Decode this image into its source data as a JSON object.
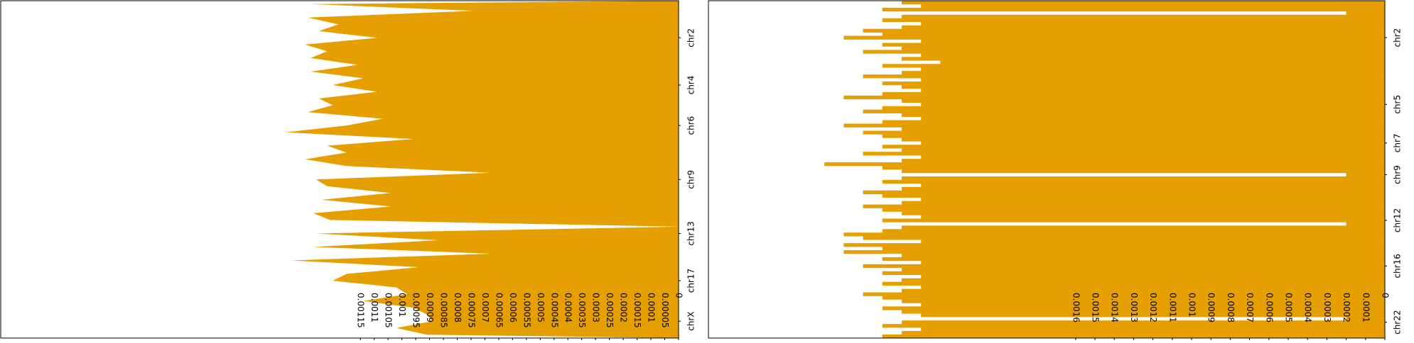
{
  "chart_data": [
    {
      "type": "area",
      "color": "#e69f00",
      "categories": [
        null,
        null,
        null,
        null,
        null,
        "chr2",
        null,
        null,
        null,
        null,
        null,
        null,
        "chr4",
        null,
        null,
        null,
        null,
        null,
        "chr6",
        null,
        null,
        null,
        null,
        null,
        null,
        null,
        "chr9",
        null,
        null,
        null,
        null,
        null,
        null,
        null,
        "chr13",
        null,
        null,
        null,
        null,
        null,
        null,
        "chr17",
        null,
        null,
        null,
        null,
        null,
        "chrX",
        null,
        null
      ],
      "values": [
        0.00133,
        0.00074,
        0.00134,
        0.00123,
        0.0013,
        0.00109,
        0.00135,
        0.00127,
        0.00133,
        0.00116,
        0.00133,
        0.00114,
        0.00125,
        0.00109,
        0.0013,
        0.00125,
        0.00134,
        0.00107,
        0.0012,
        0.00142,
        0.00096,
        0.00127,
        0.0012,
        0.00135,
        0.0012,
        0.00068,
        0.00131,
        0.00127,
        0.00104,
        0.00129,
        0.00104,
        0.00132,
        0.00126,
        0,
        0.00131,
        0.00087,
        0.00132,
        0.00068,
        0.0014,
        0.00094,
        0.0012,
        0.00125,
        0.00102,
        0.00098,
        0.00114,
        0.00096,
        0.00091,
        0.00089,
        0.00102,
        0.00091
      ],
      "xlim": [
        0,
        0.00245
      ],
      "xticks": [
        0.00115,
        0.0011,
        0.00105,
        0.001,
        0.00095,
        0.0009,
        0.00085,
        0.0008,
        0.00075,
        0.0007,
        0.00065,
        0.0006,
        0.00055,
        0.0005,
        0.00045,
        0.0004,
        0.00035,
        0.0003,
        0.00025,
        0.0002,
        0.00015,
        0.0001,
        5e-05,
        0
      ]
    },
    {
      "type": "bar",
      "color": "#e69f00",
      "categories": [
        null,
        null,
        null,
        null,
        null,
        null,
        null,
        null,
        null,
        null,
        "chr2",
        null,
        null,
        null,
        null,
        null,
        null,
        null,
        null,
        null,
        null,
        null,
        null,
        null,
        null,
        null,
        null,
        null,
        null,
        "chr5",
        null,
        null,
        null,
        null,
        null,
        null,
        null,
        null,
        null,
        null,
        "chr7",
        null,
        null,
        null,
        null,
        null,
        null,
        null,
        null,
        "chr9",
        null,
        null,
        null,
        null,
        null,
        null,
        null,
        null,
        null,
        null,
        null,
        null,
        "chr12",
        null,
        null,
        null,
        null,
        null,
        null,
        null,
        null,
        null,
        null,
        null,
        null,
        "chr16",
        null,
        null,
        null,
        null,
        null,
        null,
        null,
        null,
        null,
        null,
        null,
        null,
        null,
        null,
        null,
        "chr22",
        null,
        null,
        null,
        null
      ],
      "values": [
        0.0025,
        0.0024,
        0.0026,
        0.0002,
        0.0025,
        0.0026,
        0.0024,
        0.0025,
        0.0027,
        0.0026,
        0.0028,
        0.0024,
        0.0026,
        0.0025,
        0.0027,
        0.0024,
        0.0025,
        0.0023,
        0.0026,
        0.0024,
        0.0025,
        0.0027,
        0.0024,
        0.0026,
        0.0025,
        0.0024,
        0.0026,
        0.0028,
        0.0025,
        0.0024,
        0.0026,
        0.0027,
        0.0025,
        0.0024,
        0.0026,
        0.0028,
        0.0025,
        0.0027,
        0.0026,
        0.0025,
        0.0024,
        0.0026,
        0.0025,
        0.0027,
        0.0024,
        0.0025,
        0.0029,
        0.0026,
        0.0025,
        0.0002,
        0.0025,
        0.0026,
        0.0024,
        0.0025,
        0.0027,
        0.0026,
        0.0024,
        0.0025,
        0.0027,
        0.0026,
        0.0025,
        0.0024,
        0.0026,
        0.0002,
        0.0025,
        0.0026,
        0.0028,
        0.0027,
        0.0024,
        0.0028,
        0.0026,
        0.0028,
        0.0025,
        0.0026,
        0.0024,
        0.0027,
        0.0025,
        0.0026,
        0.0024,
        0.0025,
        0.0026,
        0.0024,
        0.0025,
        0.0027,
        0.0026,
        0.0025,
        0.0024,
        0.0026,
        0.0025,
        0.0024,
        0.0002,
        0.0025,
        0.0026,
        0.0024,
        0.0025,
        0.0026
      ],
      "xlim": [
        0,
        0.0035
      ],
      "xticks": [
        0.0016,
        0.0015,
        0.0014,
        0.0013,
        0.0012,
        0.0011,
        0.001,
        0.0009,
        0.0008,
        0.0007,
        0.0006,
        0.0005,
        0.0004,
        0.0003,
        0.0002,
        0.0001,
        0
      ]
    }
  ]
}
